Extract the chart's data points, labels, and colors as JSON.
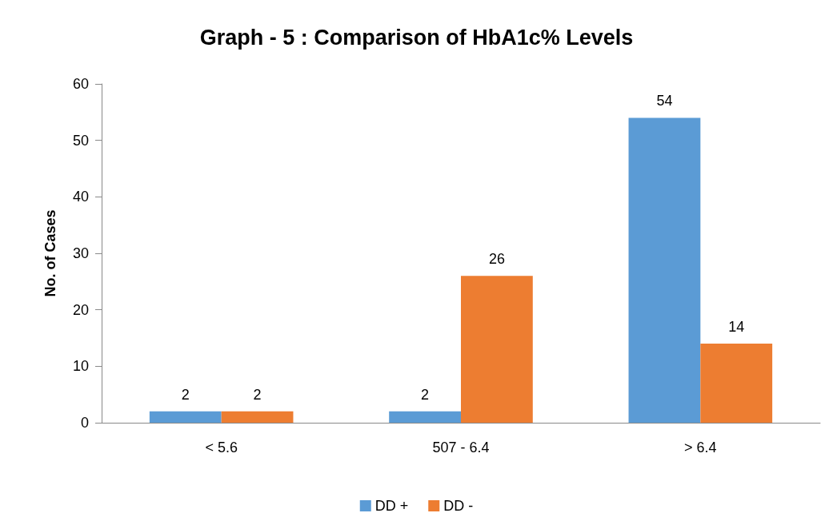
{
  "chart_data": {
    "type": "bar",
    "title": "Graph - 5 : Comparison of HbA1c% Levels",
    "ylabel": "No. of Cases",
    "categories": [
      "< 5.6",
      "507 - 6.4",
      "> 6.4"
    ],
    "series": [
      {
        "name": "DD +",
        "color": "#5b9bd5",
        "values": [
          2,
          2,
          54
        ]
      },
      {
        "name": "DD -",
        "color": "#ed7d31",
        "values": [
          2,
          26,
          14
        ]
      }
    ],
    "ylim": [
      0,
      60
    ],
    "yticks": [
      0,
      10,
      20,
      30,
      40,
      50,
      60
    ],
    "grid": false,
    "legend": "bottom",
    "data_labels": true
  }
}
